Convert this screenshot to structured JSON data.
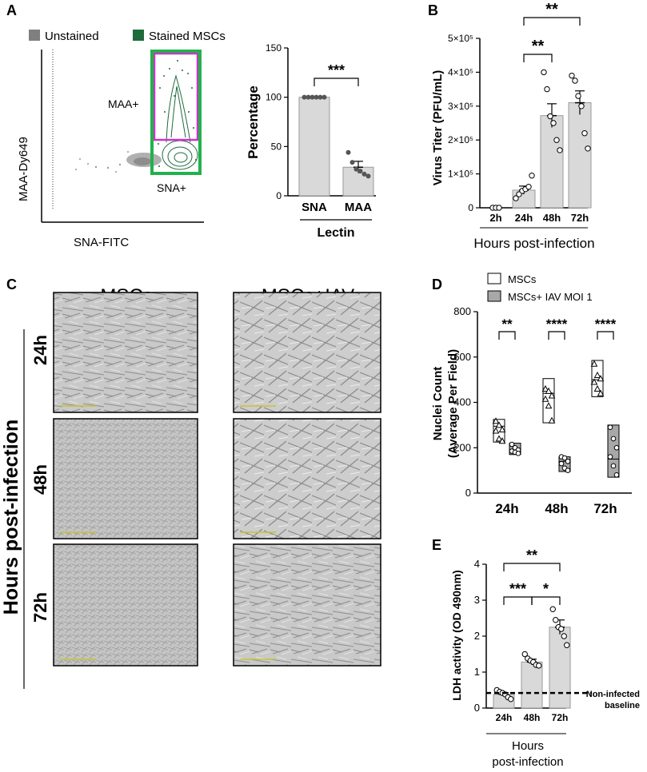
{
  "panels": {
    "a": "A",
    "b": "B",
    "c": "C",
    "d": "D",
    "e": "E"
  },
  "flow": {
    "legend_unstained": "Unstained",
    "legend_stained": "Stained MSCs",
    "xlabel": "SNA-FITC",
    "ylabel": "MAA-Dy649",
    "gate_maa": "MAA+",
    "gate_sna": "SNA+",
    "colors": {
      "unstained": "#7f7f7f",
      "stained": "#1e6b3c",
      "gate_outer": "#22b14c",
      "gate_inner": "#cc33cc"
    }
  },
  "microscopy": {
    "col1": "MSCs",
    "col2": "MSCs+IAV",
    "row_label": "Hours post-infection",
    "rows": [
      "24h",
      "48h",
      "72h"
    ]
  },
  "chart_data": [
    {
      "id": "A",
      "type": "bar",
      "categories": [
        "SNA",
        "MAA"
      ],
      "values": [
        100,
        29
      ],
      "errors": [
        0,
        6
      ],
      "points": [
        [
          100,
          100,
          100,
          100,
          100,
          100
        ],
        [
          44,
          34,
          27,
          25,
          22,
          20
        ]
      ],
      "ylabel": "Percentage",
      "xlabel": "Lectin",
      "ylim": [
        0,
        150
      ],
      "yticks": [
        "0",
        "50",
        "100",
        "150"
      ],
      "significance": [
        {
          "pair": [
            "SNA",
            "MAA"
          ],
          "label": "***"
        }
      ]
    },
    {
      "id": "B",
      "type": "bar",
      "categories": [
        "2h",
        "24h",
        "48h",
        "72h"
      ],
      "values": [
        0,
        52000,
        272000,
        310000
      ],
      "errors": [
        0,
        12000,
        35000,
        35000
      ],
      "points": [
        [
          0,
          0,
          0
        ],
        [
          28000,
          40000,
          50000,
          55000,
          62000,
          95000
        ],
        [
          400000,
          350000,
          270000,
          250000,
          200000,
          170000
        ],
        [
          390000,
          375000,
          330000,
          300000,
          220000,
          175000
        ]
      ],
      "ylabel": "Virus  Titer (PFU/mL)",
      "xlabel": "Hours post-infection",
      "ylim": [
        0,
        500000
      ],
      "yticks": [
        "0",
        "1×10⁵",
        "2×10⁵",
        "3×10⁵",
        "4×10⁵",
        "5×10⁵"
      ],
      "significance": [
        {
          "pair": [
            "24h",
            "48h"
          ],
          "label": "**"
        },
        {
          "pair": [
            "24h",
            "72h"
          ],
          "label": "**"
        }
      ]
    },
    {
      "id": "D",
      "type": "box",
      "categories": [
        "24h",
        "48h",
        "72h"
      ],
      "series": [
        {
          "name": "MSCs",
          "boxes": [
            [
              225,
              325
            ],
            [
              310,
              505
            ],
            [
              425,
              585
            ]
          ],
          "medians": [
            295,
            440,
            500
          ],
          "points": [
            [
              318,
              300,
              280,
              275,
              240,
              230
            ],
            [
              460,
              450,
              430,
              415,
              385,
              320
            ],
            [
              570,
              520,
              505,
              490,
              460,
              440
            ]
          ]
        },
        {
          "name": "MSCs+ IAV MOI 1",
          "boxes": [
            [
              170,
              220
            ],
            [
              95,
              160
            ],
            [
              70,
              300
            ]
          ],
          "medians": [
            190,
            140,
            150
          ],
          "points": [
            [
              215,
              200,
              190,
              185,
              180,
              175
            ],
            [
              160,
              155,
              140,
              130,
              110,
              100
            ],
            [
              290,
              240,
              200,
              160,
              120,
              80
            ]
          ]
        }
      ],
      "ylabel1": "Nuclei Count",
      "ylabel2": "(Average Per Field)",
      "ylim": [
        0,
        800
      ],
      "yticks": [
        "0",
        "200",
        "400",
        "600",
        "800"
      ],
      "significance": [
        "**",
        "****",
        "****"
      ]
    },
    {
      "id": "E",
      "type": "bar",
      "categories": [
        "24h",
        "48h",
        "72h"
      ],
      "values": [
        0.38,
        1.28,
        2.25
      ],
      "errors": [
        0.05,
        0.08,
        0.2
      ],
      "points": [
        [
          0.5,
          0.45,
          0.42,
          0.38,
          0.3,
          0.25
        ],
        [
          1.5,
          1.38,
          1.32,
          1.28,
          1.2,
          1.18
        ],
        [
          2.75,
          2.45,
          2.25,
          2.2,
          2.0,
          1.75
        ]
      ],
      "ylabel": "LDH activity (OD 490nm)",
      "xlabel1": "Hours",
      "xlabel2": "post-infection",
      "ylim": [
        0,
        4
      ],
      "yticks": [
        "0",
        "1",
        "2",
        "3",
        "4"
      ],
      "baseline": 0.42,
      "baseline_label1": "Non-infected",
      "baseline_label2": "baseline",
      "significance": [
        {
          "pair": [
            "24h",
            "48h"
          ],
          "label": "***"
        },
        {
          "pair": [
            "48h",
            "72h"
          ],
          "label": "*"
        },
        {
          "pair": [
            "24h",
            "72h"
          ],
          "label": "**"
        }
      ]
    }
  ]
}
